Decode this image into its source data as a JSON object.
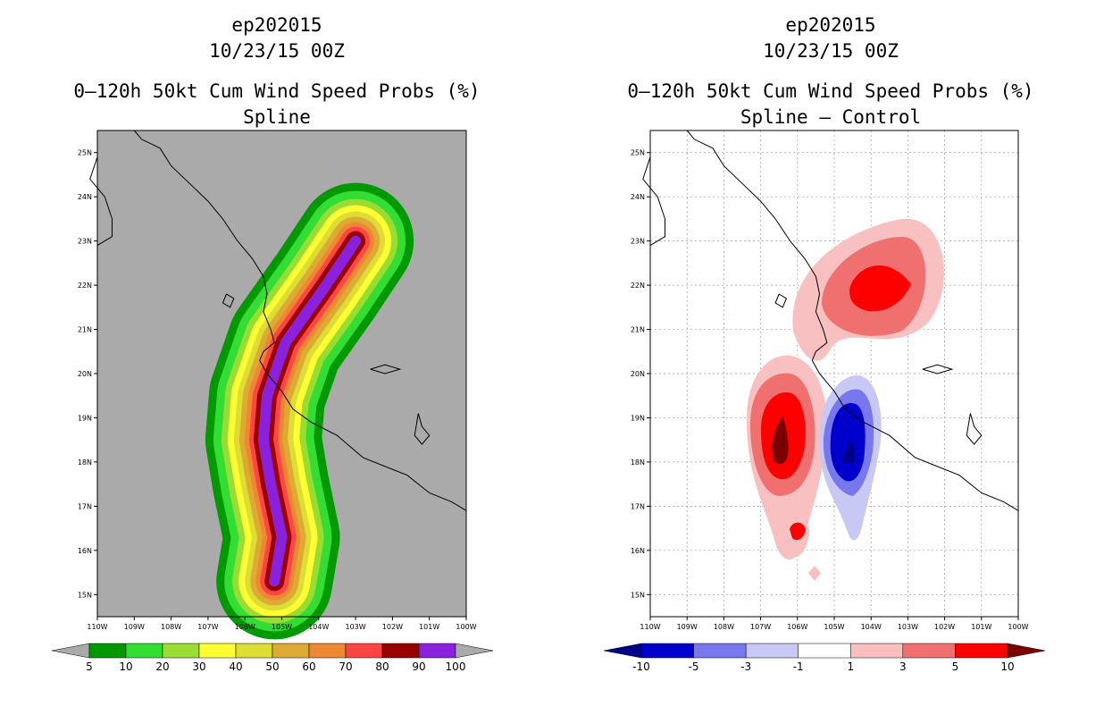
{
  "left_panel": {
    "storm": "ep202015",
    "date": "10/23/15 00Z",
    "title": "0–120h 50kt Cum Wind Speed Probs (%)",
    "subtitle": "Spline"
  },
  "right_panel": {
    "storm": "ep202015",
    "date": "10/23/15 00Z",
    "title": "0–120h 50kt Cum Wind Speed Probs (%)",
    "subtitle": "Spline – Control"
  },
  "chart_data": [
    {
      "type": "heatmap",
      "title": "0–120h 50kt Cum Wind Speed Probs (%)",
      "subtitle": "Spline",
      "xlim": [
        -110,
        -100
      ],
      "ylim": [
        14.5,
        25.5
      ],
      "x_ticks": [
        "110W",
        "109W",
        "108W",
        "107W",
        "106W",
        "105W",
        "104W",
        "103W",
        "102W",
        "101W",
        "100W"
      ],
      "y_ticks": [
        "15N",
        "16N",
        "17N",
        "18N",
        "19N",
        "20N",
        "21N",
        "22N",
        "23N",
        "24N",
        "25N"
      ],
      "colorbar": {
        "levels": [
          "5",
          "10",
          "20",
          "30",
          "40",
          "50",
          "60",
          "70",
          "80",
          "90",
          "100"
        ],
        "colors": [
          "#009900",
          "#33dd33",
          "#99dd33",
          "#ffff33",
          "#dddd33",
          "#ddaa33",
          "#ee8833",
          "#ff4444",
          "#990000",
          "#8a22dd"
        ],
        "under_color": "#aaaaaa",
        "over_color": "#aaaaaa"
      },
      "track": [
        [
          -105.2,
          15.3
        ],
        [
          -105.0,
          16.3
        ],
        [
          -105.3,
          17.5
        ],
        [
          -105.5,
          18.5
        ],
        [
          -105.4,
          19.5
        ],
        [
          -104.9,
          20.7
        ],
        [
          -103.8,
          22.0
        ],
        [
          -103.0,
          23.0
        ]
      ],
      "max_probability": 100
    },
    {
      "type": "heatmap",
      "title": "0–120h 50kt Cum Wind Speed Probs (%)",
      "subtitle": "Spline – Control",
      "xlim": [
        -110,
        -100
      ],
      "ylim": [
        14.5,
        25.5
      ],
      "x_ticks": [
        "110W",
        "109W",
        "108W",
        "107W",
        "106W",
        "105W",
        "104W",
        "103W",
        "102W",
        "101W",
        "100W"
      ],
      "y_ticks": [
        "15N",
        "16N",
        "17N",
        "18N",
        "19N",
        "20N",
        "21N",
        "22N",
        "23N",
        "24N",
        "25N"
      ],
      "colorbar": {
        "levels": [
          "-10",
          "-5",
          "-3",
          "-1",
          "1",
          "3",
          "5",
          "10"
        ],
        "colors": [
          "#0000cc",
          "#7777ee",
          "#c8c8f4",
          "#ffffff",
          "#f8c0c0",
          "#f07070",
          "#ff0000"
        ],
        "under_color": "#000088",
        "over_color": "#7a0000"
      },
      "features": [
        {
          "type": "positive",
          "center": [
            -103.8,
            22.0
          ],
          "peak_level": "5"
        },
        {
          "type": "positive",
          "center": [
            -106.5,
            18.5
          ],
          "peak_level": "10"
        },
        {
          "type": "positive",
          "center": [
            -106.0,
            16.5
          ],
          "peak_level": "5"
        },
        {
          "type": "positive",
          "center": [
            -105.5,
            15.5
          ],
          "peak_level": "1"
        },
        {
          "type": "negative",
          "center": [
            -104.6,
            18.3
          ],
          "peak_level": "-10"
        }
      ]
    }
  ]
}
